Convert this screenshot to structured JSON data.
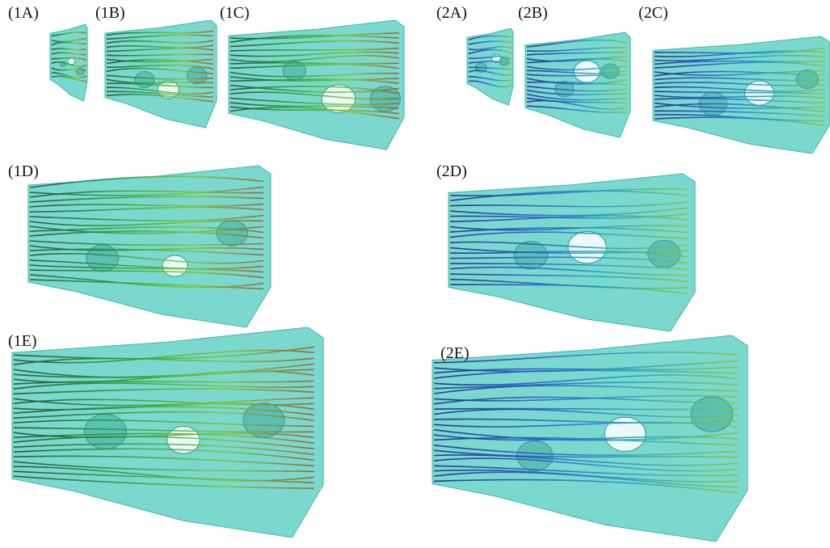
{
  "panels": [
    {
      "label": "(1A)"
    },
    {
      "label": "(1B)"
    },
    {
      "label": "(1C)"
    },
    {
      "label": "(2A)"
    },
    {
      "label": "(2B)"
    },
    {
      "label": "(2C)"
    },
    {
      "label": "(1D)"
    },
    {
      "label": "(2D)"
    },
    {
      "label": "(1E)"
    },
    {
      "label": "(2E)"
    }
  ]
}
